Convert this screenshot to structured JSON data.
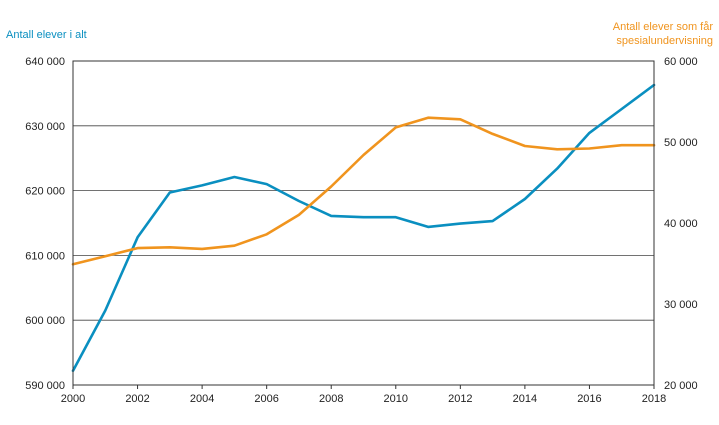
{
  "chart_data": {
    "type": "line",
    "x": [
      2000,
      2001,
      2002,
      2003,
      2004,
      2005,
      2006,
      2007,
      2008,
      2009,
      2010,
      2011,
      2012,
      2013,
      2014,
      2015,
      2016,
      2017,
      2018
    ],
    "xticks": [
      "2000",
      "2002",
      "2004",
      "2006",
      "2008",
      "2010",
      "2012",
      "2014",
      "2016",
      "2018"
    ],
    "left_axis": {
      "title": "Antall elever i alt",
      "ylim": [
        590000,
        640000
      ],
      "ticks": [
        "590 000",
        "600 000",
        "610 000",
        "620 000",
        "630 000",
        "640 000"
      ],
      "color": "#0a8fc0"
    },
    "right_axis": {
      "title_lines": [
        "Antall elever som får",
        "spesialundervisning"
      ],
      "ylim": [
        20000,
        60000
      ],
      "ticks": [
        "20 000",
        "30 000",
        "40 000",
        "50 000",
        "60 000"
      ],
      "color": "#f0941e"
    },
    "series": [
      {
        "axis": "left",
        "color": "#0a8fc0",
        "values": [
          592200,
          601500,
          612800,
          619700,
          620800,
          622100,
          621000,
          618400,
          616100,
          615900,
          615900,
          614400,
          614900,
          615300,
          618700,
          623400,
          628900,
          632600,
          636300
        ]
      },
      {
        "axis": "right",
        "color": "#f0941e",
        "values": [
          34900,
          35900,
          36900,
          37000,
          36800,
          37200,
          38600,
          41000,
          44500,
          48400,
          51800,
          53000,
          52800,
          51000,
          49500,
          49100,
          49200,
          49600,
          49600
        ]
      }
    ],
    "grid": true,
    "legend": "none"
  }
}
